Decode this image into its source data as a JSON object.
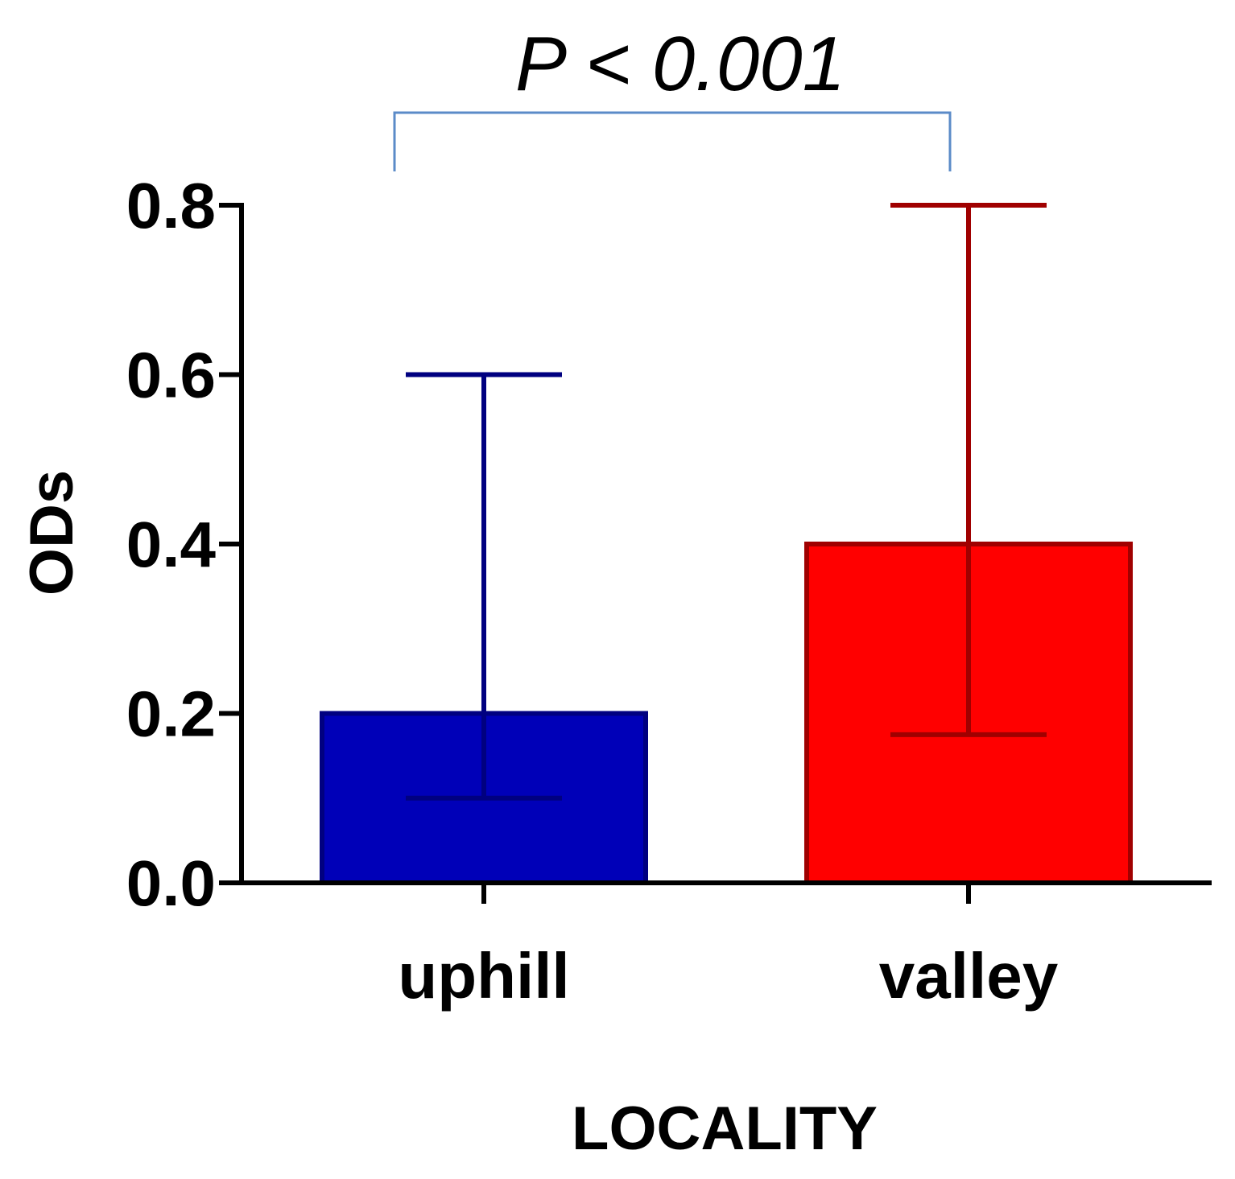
{
  "chart_data": {
    "type": "bar",
    "title": "",
    "xlabel": "LOCALITY",
    "ylabel": "ODs",
    "categories": [
      "uphill",
      "valley"
    ],
    "values": [
      0.2,
      0.4
    ],
    "error_bars": [
      {
        "lower": 0.1,
        "upper": 0.6
      },
      {
        "lower": 0.175,
        "upper": 0.8
      }
    ],
    "bar_colors": [
      "#0000b8",
      "#ff0000"
    ],
    "bar_edge_colors": [
      "#000080",
      "#a00000"
    ],
    "ylim": [
      0,
      0.8
    ],
    "yticks": [
      "0.0",
      "0.2",
      "0.4",
      "0.6",
      "0.8"
    ],
    "grid": false,
    "annotation": {
      "text": "P < 0.001",
      "color": "#5b8bc8"
    }
  }
}
